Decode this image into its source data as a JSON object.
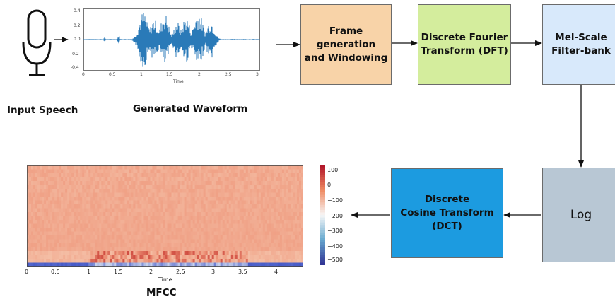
{
  "captions": {
    "input_speech": "Input Speech",
    "generated_waveform": "Generated Waveform",
    "mfcc": "MFCC"
  },
  "blocks": {
    "frame": "Frame generation\nand Windowing",
    "dft": "Discrete Fourier\nTransform (DFT)",
    "mel": "Mel-Scale\nFilter-bank",
    "log": "Log",
    "dct": "Discrete\nCosine Transform\n(DCT)"
  },
  "colors": {
    "frame": "#f8d3a8",
    "dft": "#d4ed9d",
    "mel": "#d8e9fb",
    "log": "#b8c7d4",
    "dct": "#1c9be0",
    "waveform": "#2a7ab8"
  },
  "icons": [
    "microphone-icon"
  ],
  "waveform_axes": {
    "y_ticks": [
      "0.4",
      "0.2",
      "0.0",
      "-0.2",
      "-0.4"
    ],
    "x_ticks": [
      "0",
      "0.5",
      "1",
      "1.5",
      "2",
      "2.5",
      "3"
    ],
    "xlabel": "Time"
  },
  "mfcc_axes": {
    "x_ticks": [
      "0",
      "0.5",
      "1",
      "1.5",
      "2",
      "2.5",
      "3",
      "3.5",
      "4"
    ],
    "xlabel": "Time",
    "colorbar_ticks": [
      "100",
      "0",
      "−100",
      "−200",
      "−300",
      "−400",
      "−500"
    ]
  }
}
